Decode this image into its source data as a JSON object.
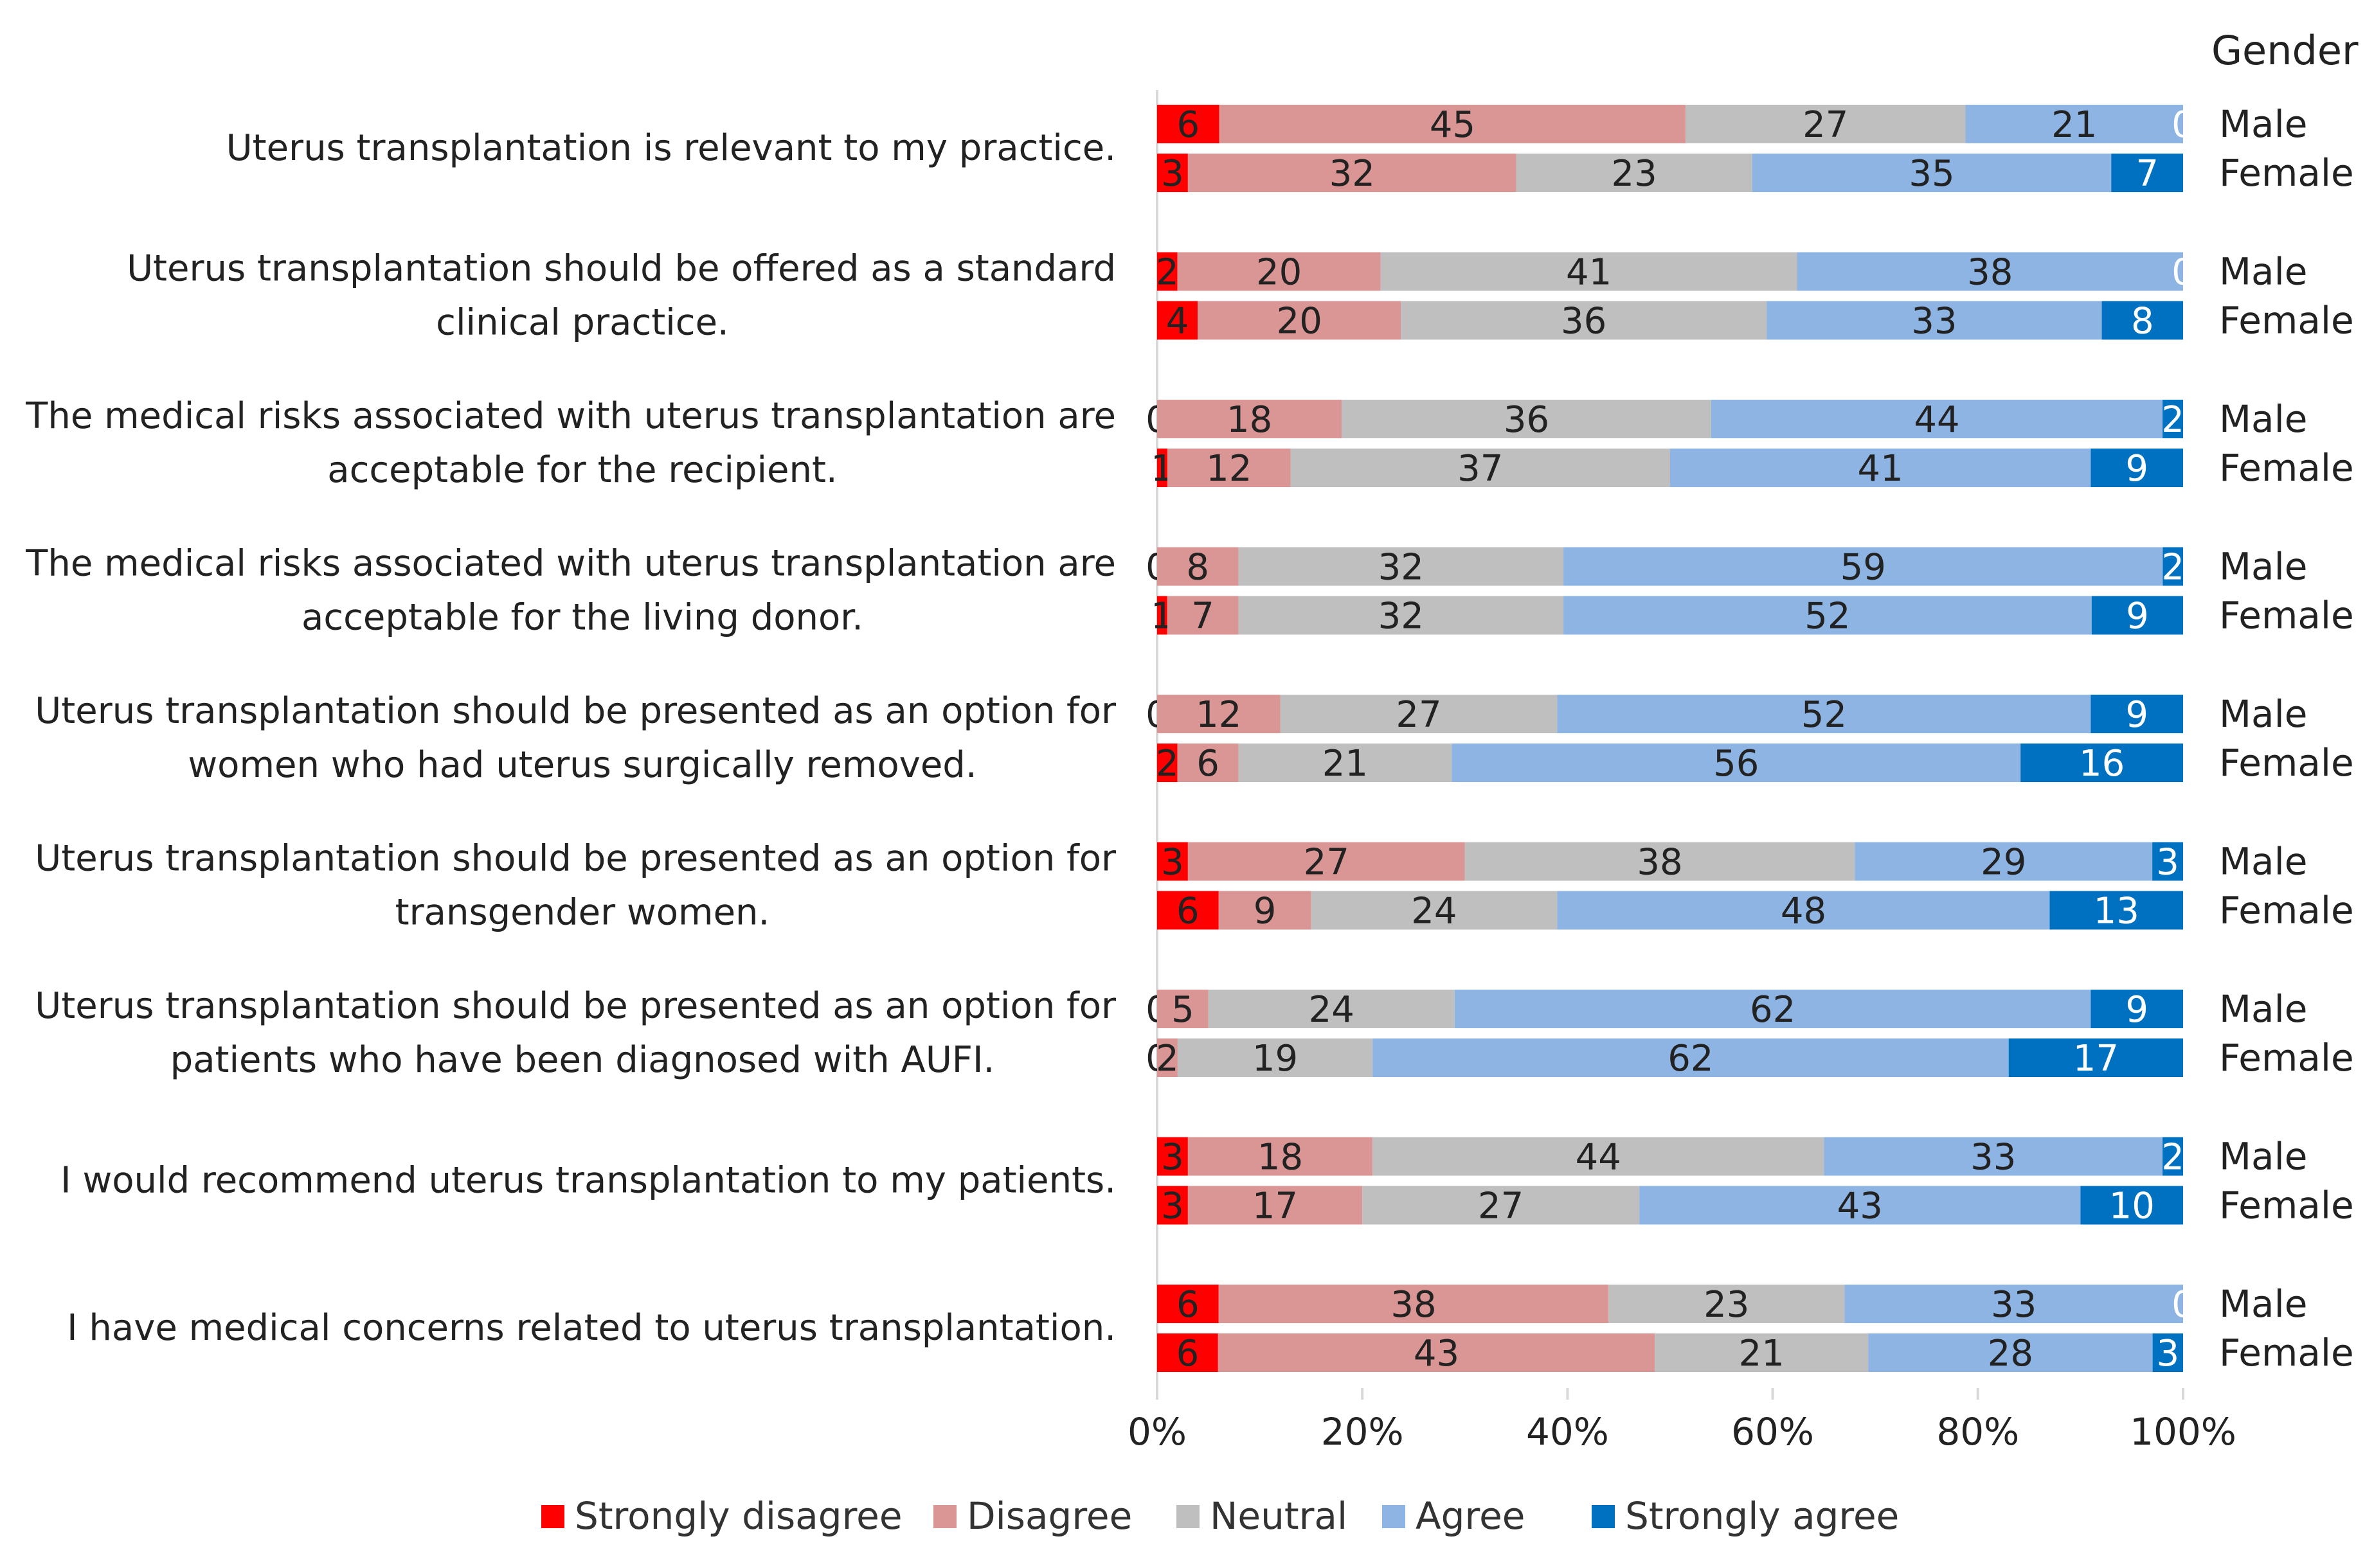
{
  "chart_data": {
    "type": "bar",
    "orientation": "horizontal",
    "stacking": "percent",
    "legend_title": "Gender",
    "categories": [
      "Uterus transplantation is relevant to my practice.",
      "Uterus transplantation should be offered as a standard clinical practice.",
      "The medical risks associated with uterus transplantation are acceptable for the recipient.",
      "The medical risks associated with uterus transplantation are acceptable for the living donor.",
      "Uterus transplantation should be presented as an option for women who had uterus surgically removed.",
      "Uterus transplantation should be presented as an option for transgender women.",
      "Uterus transplantation should be presented as an option for patients who have been diagnosed with AUFI.",
      "I would recommend uterus transplantation to my patients.",
      "I have medical concerns related to uterus transplantation."
    ],
    "groups": [
      "Male",
      "Female"
    ],
    "series": [
      {
        "name": "Strongly disagree",
        "color": "#ff0000"
      },
      {
        "name": "Disagree",
        "color": "#da9694"
      },
      {
        "name": "Neutral",
        "color": "#bfbfbf"
      },
      {
        "name": "Agree",
        "color": "#8db4e2"
      },
      {
        "name": "Strongly agree",
        "color": "#0070c0"
      }
    ],
    "values": [
      {
        "Male": [
          6,
          45,
          27,
          21,
          0
        ],
        "Female": [
          3,
          32,
          23,
          35,
          7
        ]
      },
      {
        "Male": [
          2,
          20,
          41,
          38,
          0
        ],
        "Female": [
          4,
          20,
          36,
          33,
          8
        ]
      },
      {
        "Male": [
          0,
          18,
          36,
          44,
          2
        ],
        "Female": [
          1,
          12,
          37,
          41,
          9
        ]
      },
      {
        "Male": [
          0,
          8,
          32,
          59,
          2
        ],
        "Female": [
          1,
          7,
          32,
          52,
          9
        ]
      },
      {
        "Male": [
          0,
          12,
          27,
          52,
          9
        ],
        "Female": [
          2,
          6,
          21,
          56,
          16
        ]
      },
      {
        "Male": [
          3,
          27,
          38,
          29,
          3
        ],
        "Female": [
          6,
          9,
          24,
          48,
          13
        ]
      },
      {
        "Male": [
          0,
          5,
          24,
          62,
          9
        ],
        "Female": [
          0,
          2,
          19,
          62,
          17
        ]
      },
      {
        "Male": [
          3,
          18,
          44,
          33,
          2
        ],
        "Female": [
          3,
          17,
          27,
          43,
          10
        ]
      },
      {
        "Male": [
          6,
          38,
          23,
          33,
          0
        ],
        "Female": [
          6,
          43,
          21,
          28,
          3
        ]
      }
    ],
    "xlim": [
      0,
      100
    ],
    "xticks": [
      "0%",
      "20%",
      "40%",
      "60%",
      "80%",
      "100%"
    ],
    "legend_position": "bottom",
    "title": "",
    "xlabel": "",
    "ylabel": ""
  }
}
